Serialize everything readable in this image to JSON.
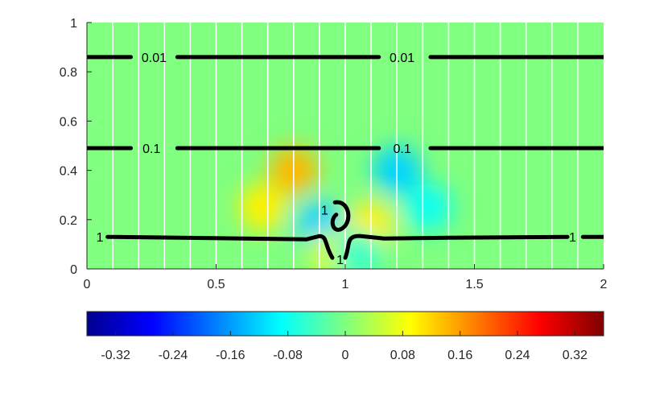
{
  "chart_data": {
    "type": "heatmap",
    "title": "",
    "xlabel": "",
    "ylabel": "",
    "xlim": [
      0,
      2
    ],
    "ylim": [
      0,
      1
    ],
    "x_ticks": [
      "0",
      "0.5",
      "1",
      "1.5",
      "2"
    ],
    "y_ticks": [
      "0",
      "0.2",
      "0.4",
      "0.6",
      "0.8",
      "1"
    ],
    "colormap": "jet",
    "background_value": 0,
    "colorbar": {
      "range": [
        -0.36,
        0.36
      ],
      "ticks": [
        "-0.32",
        "-0.24",
        "-0.16",
        "-0.08",
        "0",
        "0.08",
        "0.16",
        "0.24",
        "0.32"
      ],
      "placement": "bottom"
    },
    "anomalies": [
      {
        "x": 0.8,
        "y": 0.4,
        "value": 0.14
      },
      {
        "x": 1.2,
        "y": 0.4,
        "value": -0.12
      },
      {
        "x": 0.68,
        "y": 0.25,
        "value": 0.1
      },
      {
        "x": 1.32,
        "y": 0.25,
        "value": -0.08
      },
      {
        "x": 0.9,
        "y": 0.18,
        "value": -0.12
      },
      {
        "x": 1.1,
        "y": 0.18,
        "value": 0.1
      },
      {
        "x": 0.95,
        "y": 0.06,
        "value": 0.06
      },
      {
        "x": 1.05,
        "y": 0.06,
        "value": -0.05
      }
    ],
    "flow_lines_x": [
      0.1,
      0.2,
      0.3,
      0.4,
      0.5,
      0.6,
      0.7,
      0.8,
      0.9,
      1.0,
      1.1,
      1.2,
      1.3,
      1.4,
      1.5,
      1.6,
      1.7,
      1.8,
      1.9
    ],
    "contours": [
      {
        "level_label": "0.01",
        "y": 0.86
      },
      {
        "level_label": "0.1",
        "y": 0.49
      },
      {
        "level_label": "1",
        "y": 0.13
      }
    ],
    "contour_labels": [
      {
        "text": "0.01",
        "x": 0.26,
        "y": 0.86
      },
      {
        "text": "0.01",
        "x": 1.22,
        "y": 0.86
      },
      {
        "text": "0.1",
        "x": 0.25,
        "y": 0.49
      },
      {
        "text": "0.1",
        "x": 1.22,
        "y": 0.49
      },
      {
        "text": "1",
        "x": 0.05,
        "y": 0.13
      },
      {
        "text": "1",
        "x": 1.88,
        "y": 0.13
      },
      {
        "text": "1",
        "x": 0.92,
        "y": 0.24
      },
      {
        "text": "1",
        "x": 0.98,
        "y": 0.04
      }
    ]
  }
}
